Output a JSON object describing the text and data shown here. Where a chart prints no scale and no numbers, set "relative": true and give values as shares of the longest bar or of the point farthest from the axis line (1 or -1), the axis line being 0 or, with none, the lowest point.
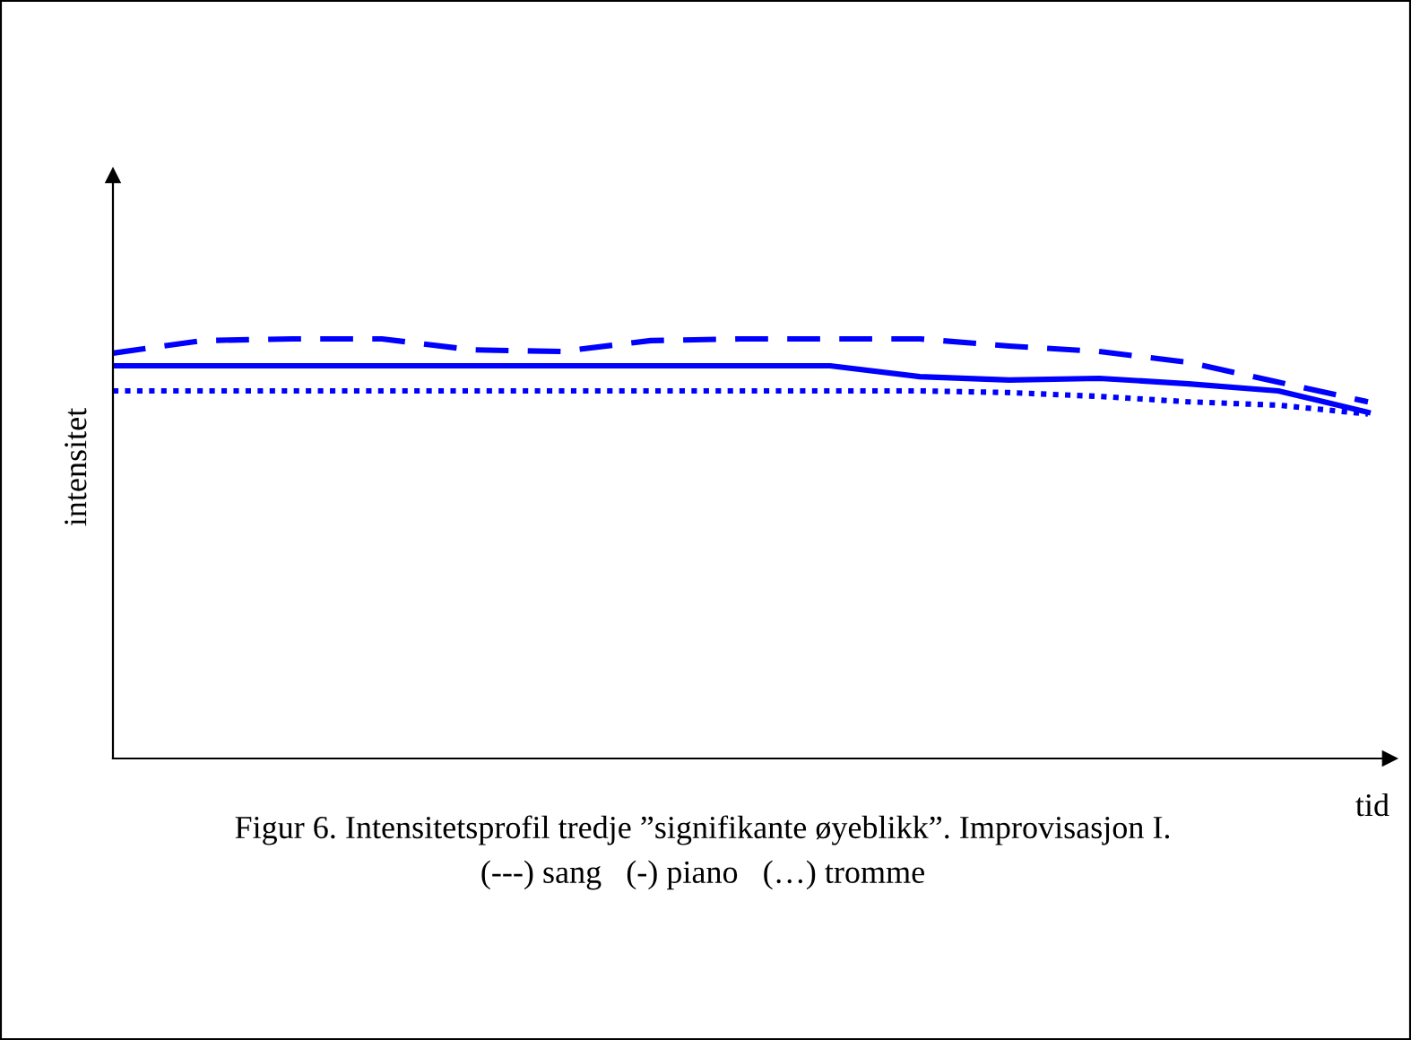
{
  "chart_data": {
    "type": "line",
    "relative": true,
    "xlabel": "tid",
    "ylabel": "intensitet",
    "categories": [
      null,
      null,
      null,
      null,
      null,
      null,
      null,
      null,
      null,
      null,
      null,
      null,
      null,
      null,
      null
    ],
    "series": [
      {
        "color": "#0000ff",
        "line_style": "dashed",
        "values": [
          0.966,
          0.996,
          1,
          1,
          0.974,
          0.97,
          0.996,
          1,
          1,
          1,
          0.983,
          0.97,
          0.944,
          0.897,
          0.85
        ]
      },
      {
        "color": "#0000ff",
        "line_style": "solid",
        "values": [
          0.936,
          0.936,
          0.936,
          0.936,
          0.936,
          0.936,
          0.936,
          0.936,
          0.936,
          0.91,
          0.902,
          0.906,
          0.893,
          0.876,
          0.825
        ]
      },
      {
        "color": "#0000ff",
        "line_style": "dotted",
        "values": [
          0.876,
          0.876,
          0.876,
          0.876,
          0.876,
          0.876,
          0.876,
          0.876,
          0.876,
          0.876,
          0.872,
          0.863,
          0.85,
          0.842,
          0.821
        ]
      }
    ],
    "annotations": [
      "Figur 6. Intensitetsprofil tredje ”signifikante øyeblikk”. Improvisasjon I.",
      "(---) sang   (-) piano   (…) tromme"
    ]
  }
}
